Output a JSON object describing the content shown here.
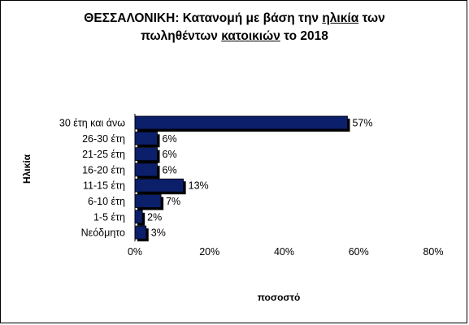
{
  "chart_data": {
    "type": "bar",
    "orientation": "horizontal",
    "title": {
      "line1_prefix": "ΘΕΣΣΑΛΟΝΙΚΗ:  Κατανομή με βάση την ",
      "line1_underlined": "ηλικία",
      "line1_suffix": " των",
      "line2_prefix": "πωληθέντων ",
      "line2_underlined": "κατοικιών",
      "line2_suffix": " το 2018"
    },
    "categories": [
      "30 έτη και άνω",
      "26-30 έτη",
      "21-25 έτη",
      "16-20 έτη",
      "11-15 έτη",
      "6-10 έτη",
      "1-5 έτη",
      "Νεόδμητο"
    ],
    "values": [
      57,
      6,
      6,
      6,
      13,
      7,
      2,
      3
    ],
    "data_labels": [
      "57%",
      "6%",
      "6%",
      "6%",
      "13%",
      "7%",
      "2%",
      "3%"
    ],
    "xlabel": "ποσοστό",
    "ylabel": "Ηλικία",
    "xlim": [
      0,
      80
    ],
    "xticks": [
      0,
      20,
      40,
      60,
      80
    ],
    "xtick_labels": [
      "0%",
      "20%",
      "40%",
      "60%",
      "80%"
    ],
    "grid": false,
    "bar_color": "#0b1f6b",
    "shadow_color": "#000000"
  }
}
